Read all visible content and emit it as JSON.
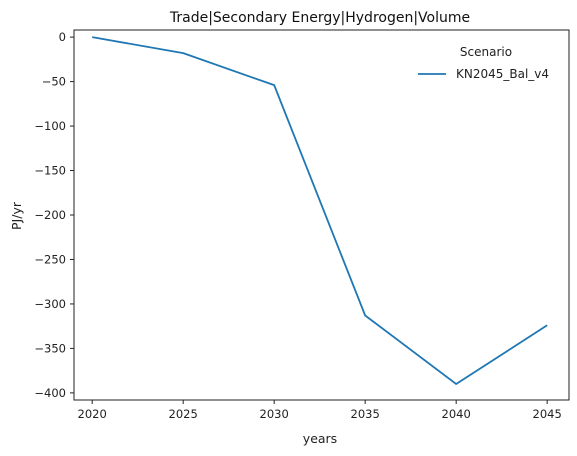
{
  "chart_data": {
    "type": "line",
    "title": "Trade|Secondary Energy|Hydrogen|Volume",
    "xlabel": "years",
    "ylabel": "PJ/yr",
    "x": [
      2020,
      2025,
      2030,
      2035,
      2040,
      2045
    ],
    "xticks": [
      "2020",
      "2025",
      "2030",
      "2035",
      "2040",
      "2045"
    ],
    "yticks": [
      "0",
      "−50",
      "−100",
      "−150",
      "−200",
      "−250",
      "−300",
      "−350",
      "−400"
    ],
    "ytick_values": [
      0,
      -50,
      -100,
      -150,
      -200,
      -250,
      -300,
      -350,
      -400
    ],
    "xlim": [
      2019,
      2046.2
    ],
    "ylim": [
      -408,
      8
    ],
    "grid": false,
    "legend": {
      "title": "Scenario",
      "placement": "top-right"
    },
    "series": [
      {
        "name": "KN2045_Bal_v4",
        "color": "#1f77b4",
        "values": [
          0,
          -18,
          -54,
          -313,
          -390,
          -324
        ]
      }
    ]
  }
}
